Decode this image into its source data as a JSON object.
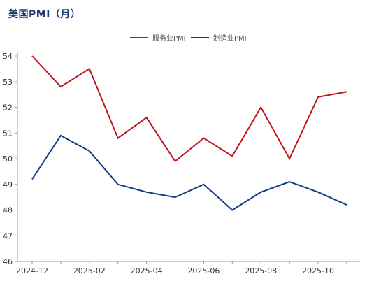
{
  "chart_data": {
    "type": "line",
    "title": "美国PMI（月）",
    "x": [
      "2024-12",
      "2025-01",
      "2025-02",
      "2025-03",
      "2025-04",
      "2025-05",
      "2025-06",
      "2025-07",
      "2025-08",
      "2025-09",
      "2025-10",
      "2025-11"
    ],
    "x_tick_labels": [
      "2024-12",
      "2025-02",
      "2025-04",
      "2025-06",
      "2025-08",
      "2025-10"
    ],
    "series": [
      {
        "name": "服务业PMI",
        "color": "#c0141e",
        "values": [
          54.0,
          52.8,
          53.5,
          50.8,
          51.6,
          49.9,
          50.8,
          50.1,
          52.0,
          50.0,
          52.4,
          52.6
        ]
      },
      {
        "name": "制造业PMI",
        "color": "#0c3c86",
        "values": [
          49.2,
          50.9,
          50.3,
          49.0,
          48.7,
          48.5,
          49.0,
          48.0,
          48.7,
          49.1,
          48.7,
          48.2
        ]
      }
    ],
    "ylim": [
      46,
      54
    ],
    "y_ticks": [
      46,
      47,
      48,
      49,
      50,
      51,
      52,
      53,
      54
    ],
    "legend_position": "top-center",
    "grid": false
  }
}
